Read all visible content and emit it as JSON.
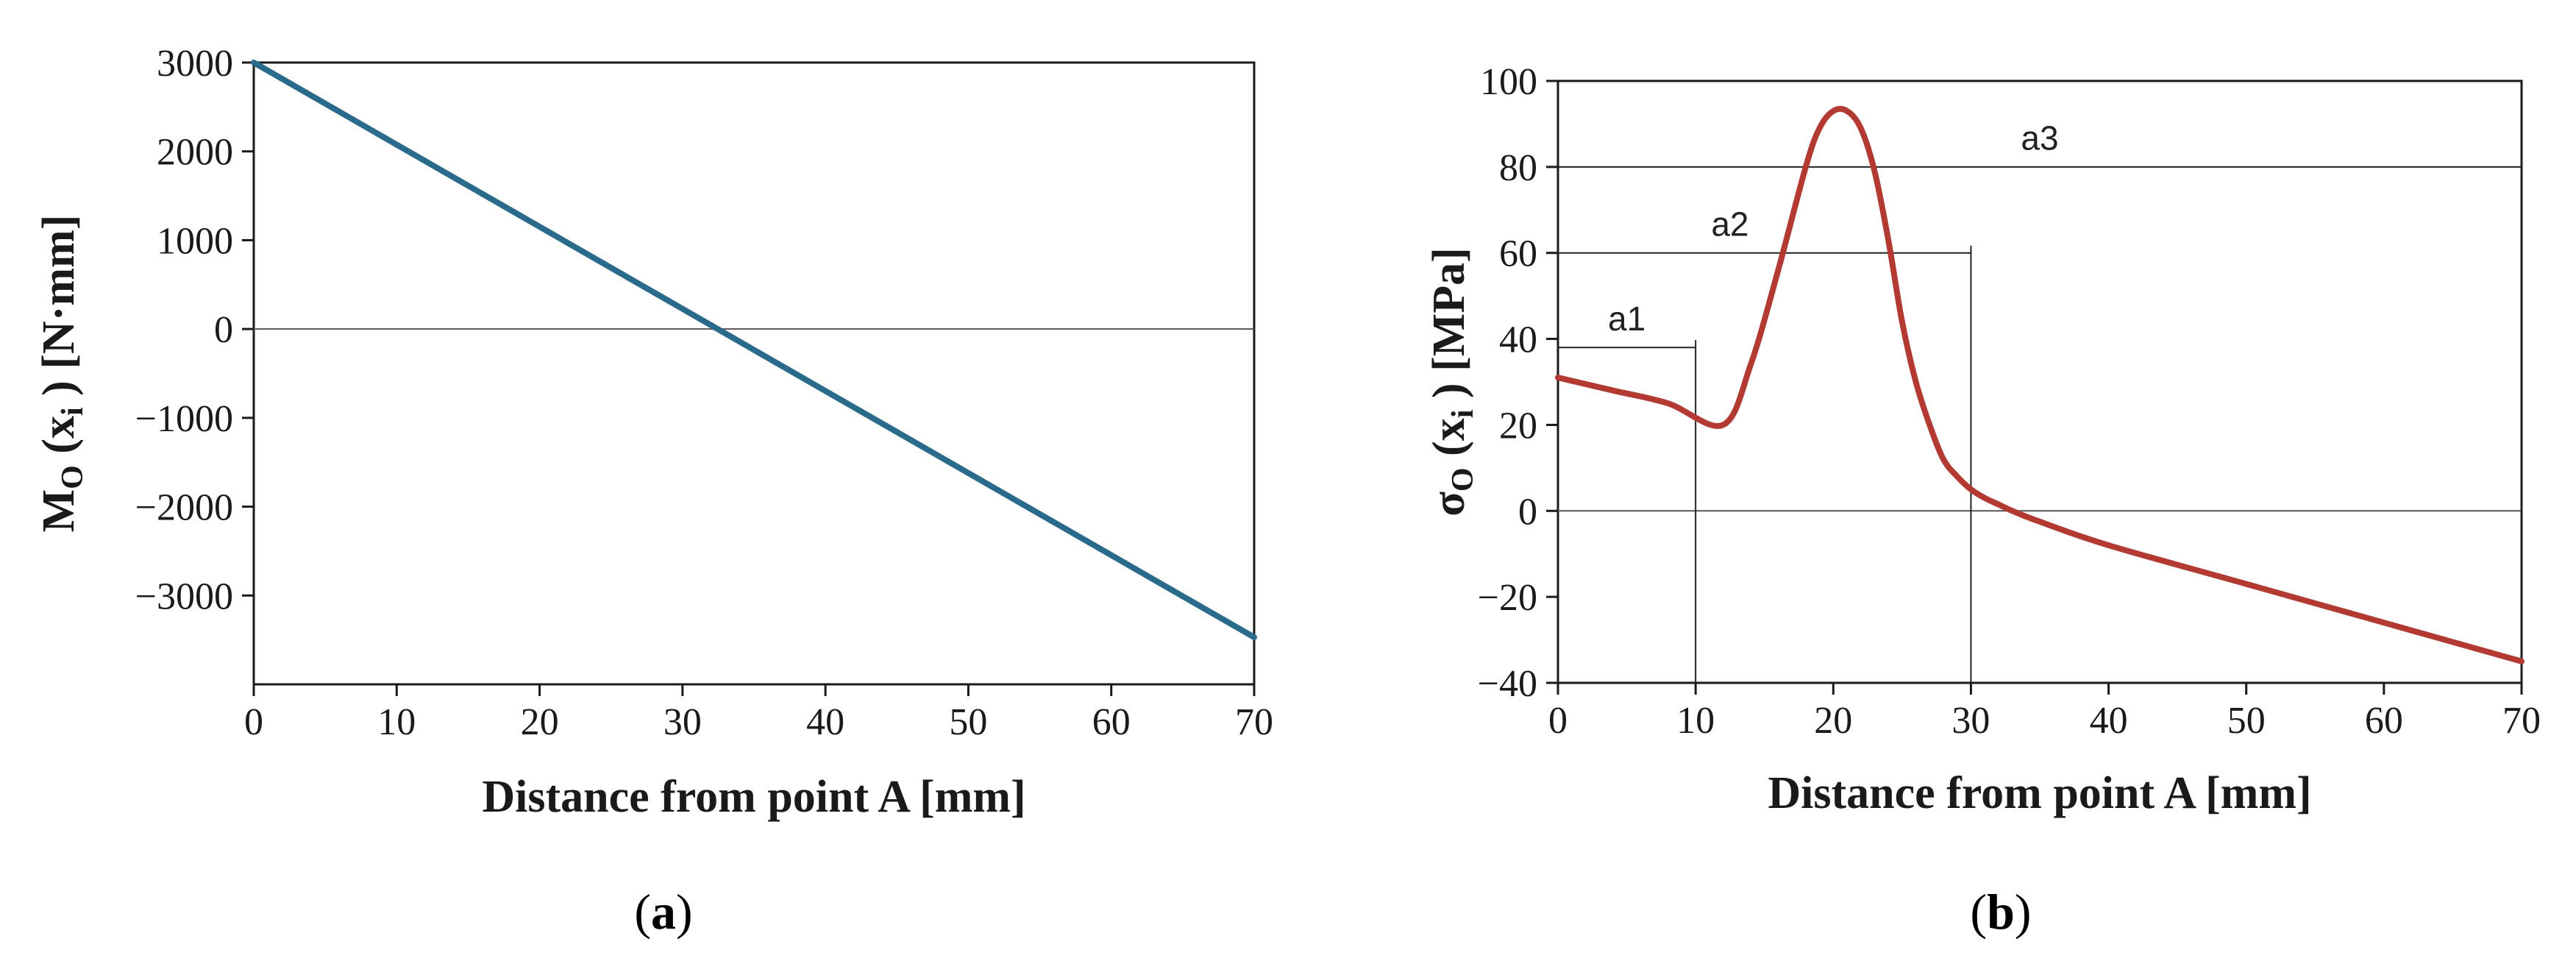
{
  "chart_data": [
    {
      "type": "line",
      "panel_label": "a",
      "title": "",
      "xlabel": "Distance from point A [mm]",
      "ylabel": "M",
      "ylabel_sub": "O",
      "ylabel_rest": "(x",
      "ylabel_idx": "i",
      "ylabel_close": ") [N·mm]",
      "xlim": [
        0,
        70
      ],
      "ylim": [
        -4000,
        3000
      ],
      "xticks": [
        0,
        10,
        20,
        30,
        40,
        50,
        60,
        70
      ],
      "yticks": [
        3000,
        2000,
        1000,
        0,
        -1000,
        -2000,
        -3000
      ],
      "xtick_labels": [
        "0",
        "10",
        "20",
        "30",
        "40",
        "50",
        "60",
        "70"
      ],
      "ytick_labels": [
        "3000",
        "2000",
        "1000",
        "0",
        "−1000",
        "−2000",
        "−3000"
      ],
      "zero_line": true,
      "series": [
        {
          "name": "M_O",
          "color": "#2a6b8c",
          "x": [
            0,
            70
          ],
          "y": [
            3000,
            -3470
          ]
        }
      ]
    },
    {
      "type": "line",
      "panel_label": "b",
      "title": "",
      "xlabel": "Distance from point A [mm]",
      "ylabel": "σ",
      "ylabel_sub": "O",
      "ylabel_rest": "(x",
      "ylabel_idx": "i",
      "ylabel_close": ") [MPa]",
      "xlim": [
        0,
        70
      ],
      "ylim": [
        -40,
        100
      ],
      "xticks": [
        0,
        10,
        20,
        30,
        40,
        50,
        60,
        70
      ],
      "yticks": [
        100,
        80,
        60,
        40,
        20,
        0,
        -20,
        -40
      ],
      "xtick_labels": [
        "0",
        "10",
        "20",
        "30",
        "40",
        "50",
        "60",
        "70"
      ],
      "ytick_labels": [
        "100",
        "80",
        "60",
        "40",
        "20",
        "0",
        "−20",
        "−40"
      ],
      "zero_line": true,
      "series": [
        {
          "name": "σ_O",
          "color": "#b23a32",
          "x": [
            0,
            4,
            8,
            12,
            14,
            16,
            18,
            19,
            20,
            21,
            22,
            23,
            24,
            25,
            26,
            27,
            28,
            29,
            30,
            31,
            32,
            33,
            35,
            40,
            50,
            60,
            70
          ],
          "y": [
            31,
            28,
            25,
            20,
            34,
            56,
            80,
            89,
            93,
            93,
            89,
            79,
            63,
            44,
            30,
            20,
            12,
            8,
            5,
            3,
            1.5,
            0,
            -2.5,
            -8,
            -17,
            -26,
            -35
          ]
        }
      ],
      "annotations": [
        {
          "label": "a1",
          "x_end": 10,
          "y": 38,
          "text_x": 5,
          "text_y": 42
        },
        {
          "label": "a2",
          "x_end": 30,
          "y": 60,
          "text_x": 12.5,
          "text_y": 64
        },
        {
          "label": "a3",
          "x_end": 70,
          "y": 80,
          "text_x": 35,
          "text_y": 84
        }
      ]
    }
  ]
}
